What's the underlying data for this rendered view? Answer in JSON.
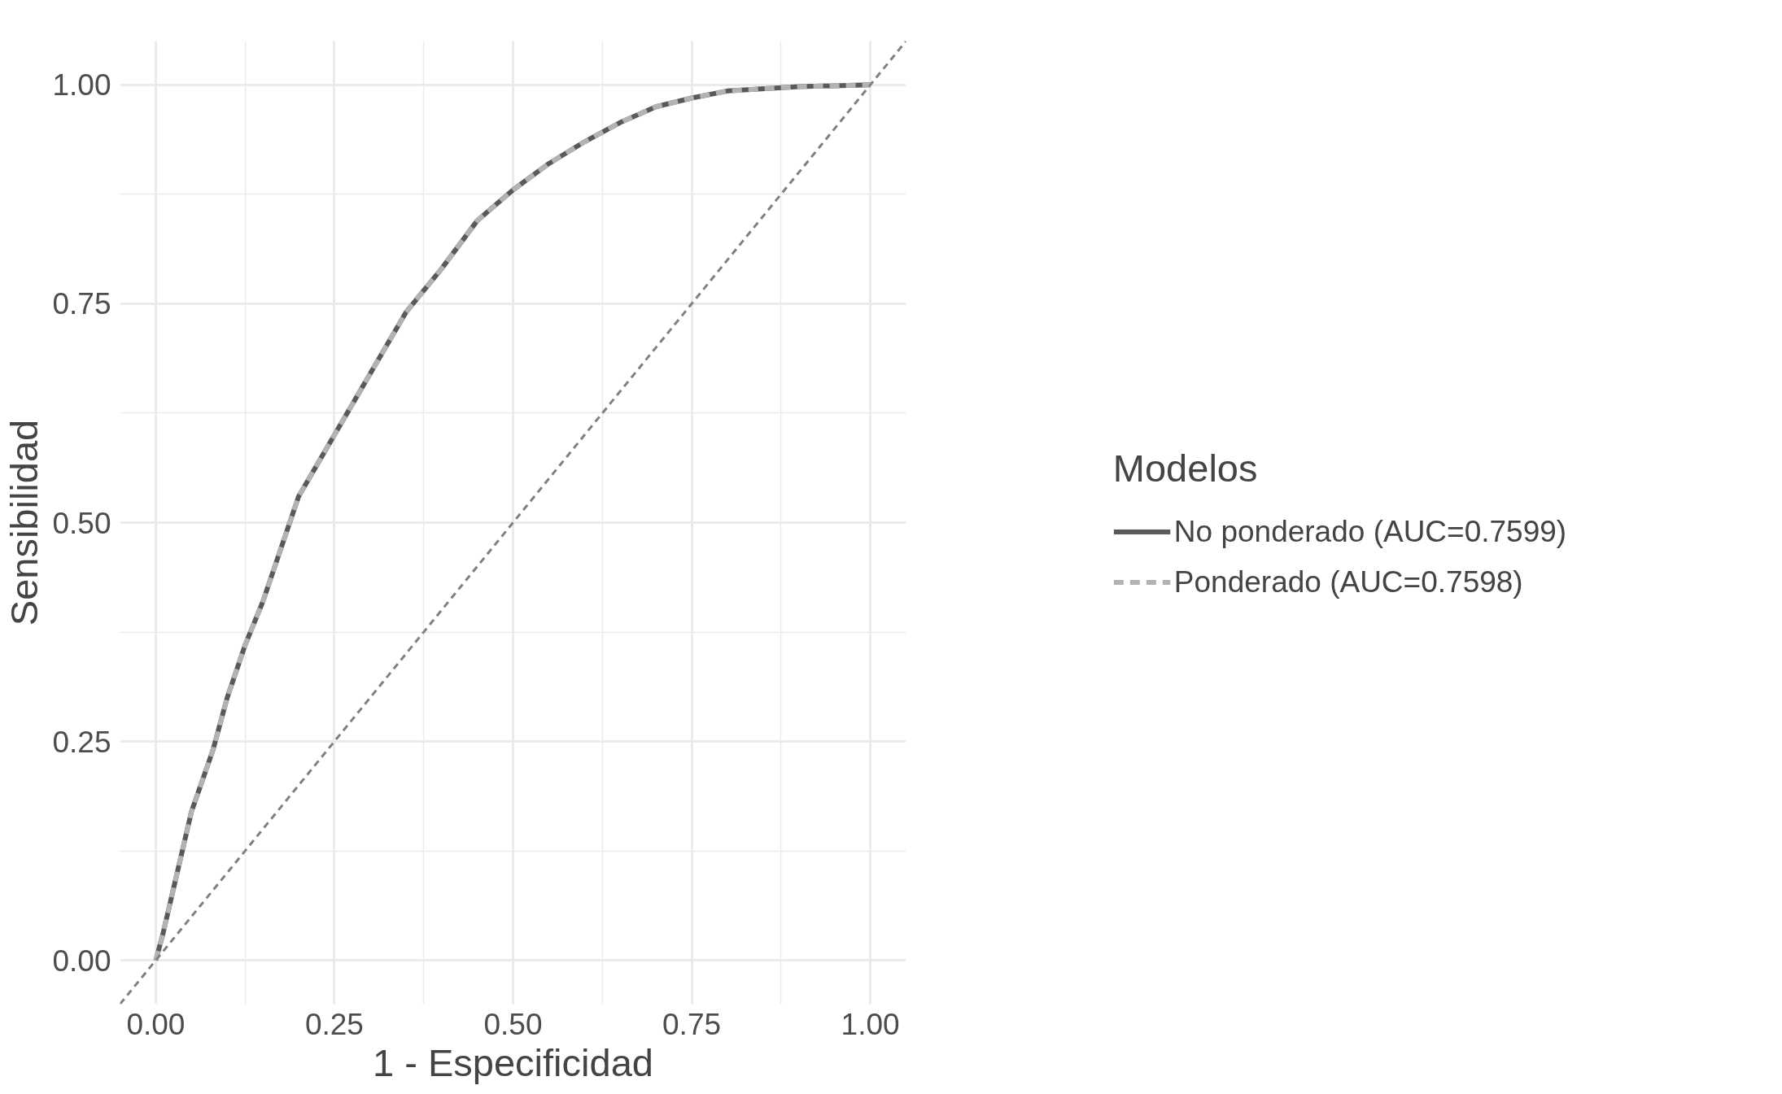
{
  "chart_data": {
    "type": "line",
    "xlabel": "1 - Especificidad",
    "ylabel": "Sensibilidad",
    "legend_title": "Modelos",
    "xlim": [
      -0.05,
      1.05
    ],
    "ylim": [
      -0.05,
      1.05
    ],
    "xticks": [
      {
        "value": 0,
        "label": "0.00"
      },
      {
        "value": 0.25,
        "label": "0.25"
      },
      {
        "value": 0.5,
        "label": "0.50"
      },
      {
        "value": 0.75,
        "label": "0.75"
      },
      {
        "value": 1,
        "label": "1.00"
      }
    ],
    "yticks": [
      {
        "value": 0,
        "label": "0.00"
      },
      {
        "value": 0.25,
        "label": "0.25"
      },
      {
        "value": 0.5,
        "label": "0.50"
      },
      {
        "value": 0.75,
        "label": "0.75"
      },
      {
        "value": 1,
        "label": "1.00"
      }
    ],
    "grid": true,
    "legend": "right",
    "marker": "none",
    "series": [
      {
        "name": "No ponderado (AUC=0.7599)",
        "color": "#595959",
        "line_style": "solid",
        "x": [
          0,
          0.01,
          0.03,
          0.05,
          0.08,
          0.1,
          0.125,
          0.15,
          0.2,
          0.25,
          0.3,
          0.35,
          0.4,
          0.45,
          0.5,
          0.55,
          0.6,
          0.65,
          0.7,
          0.75,
          0.8,
          0.9,
          1
        ],
        "values": [
          0,
          0.03,
          0.1,
          0.17,
          0.24,
          0.3,
          0.36,
          0.41,
          0.53,
          0.6,
          0.67,
          0.74,
          0.79,
          0.845,
          0.88,
          0.91,
          0.935,
          0.957,
          0.975,
          0.985,
          0.993,
          0.998,
          1
        ]
      },
      {
        "name": "Ponderado (AUC=0.7598)",
        "color": "#b3b3b3",
        "line_style": "dashed",
        "x": [
          0,
          0.01,
          0.03,
          0.05,
          0.08,
          0.1,
          0.125,
          0.15,
          0.2,
          0.25,
          0.3,
          0.35,
          0.4,
          0.45,
          0.5,
          0.55,
          0.6,
          0.65,
          0.7,
          0.75,
          0.8,
          0.9,
          1
        ],
        "values": [
          0,
          0.03,
          0.1,
          0.17,
          0.24,
          0.3,
          0.36,
          0.41,
          0.53,
          0.6,
          0.67,
          0.74,
          0.79,
          0.845,
          0.88,
          0.91,
          0.935,
          0.957,
          0.975,
          0.985,
          0.993,
          0.998,
          1
        ]
      },
      {
        "color": "#808080",
        "line_style": "dashed",
        "x": [
          -0.05,
          1.05
        ],
        "values": [
          -0.05,
          1.05
        ]
      }
    ]
  }
}
